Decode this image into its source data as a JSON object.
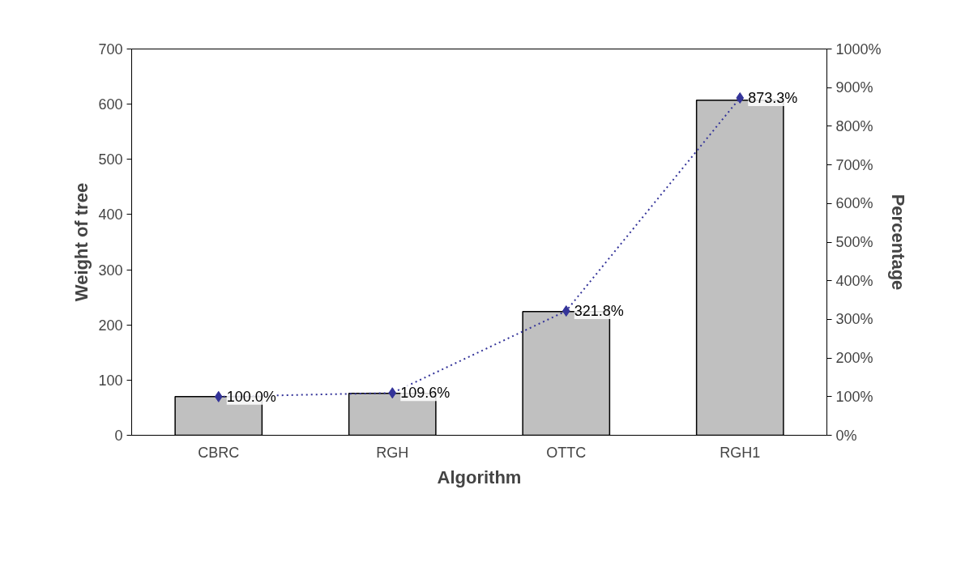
{
  "chart_data": {
    "type": "bar",
    "categories": [
      "CBRC",
      "RGH",
      "OTTC",
      "RGH1"
    ],
    "xlabel": "Algorithm",
    "ylabel": "Weight of tree",
    "y2label": "Percentage",
    "ylim": [
      0,
      700
    ],
    "yticks": [
      0,
      100,
      200,
      300,
      400,
      500,
      600,
      700
    ],
    "y2lim": [
      0,
      1000
    ],
    "y2ticks": [
      {
        "value": 0,
        "label": "0%"
      },
      {
        "value": 100,
        "label": "100%"
      },
      {
        "value": 200,
        "label": "200%"
      },
      {
        "value": 300,
        "label": "300%"
      },
      {
        "value": 400,
        "label": "400%"
      },
      {
        "value": 500,
        "label": "500%"
      },
      {
        "value": 600,
        "label": "600%"
      },
      {
        "value": 700,
        "label": "700%"
      },
      {
        "value": 800,
        "label": "800%"
      },
      {
        "value": 900,
        "label": "900%"
      },
      {
        "value": 1000,
        "label": "1000%"
      }
    ],
    "grid": false,
    "series": [
      {
        "color": "#c0c0c0",
        "values": [
          70,
          76,
          224,
          607
        ]
      },
      {
        "type": "line",
        "axis": "y2",
        "color": "#333399",
        "marker": "diamond",
        "line_style": "dotted",
        "values": [
          100.0,
          109.6,
          321.8,
          873.3
        ],
        "value_labels": [
          "100.0%",
          "109.6%",
          "321.8%",
          "873.3%"
        ]
      }
    ]
  }
}
